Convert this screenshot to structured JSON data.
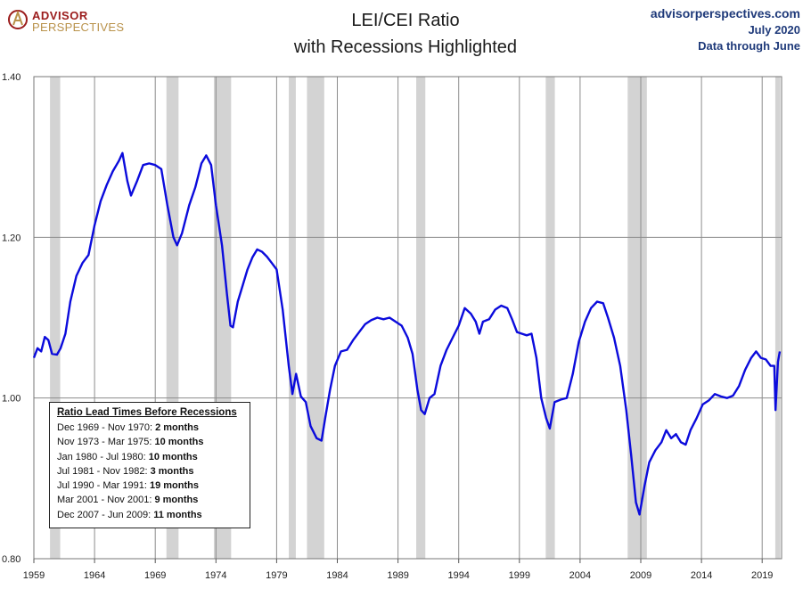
{
  "header": {
    "logo_line1": "ADVISOR",
    "logo_line2": "PERSPECTIVES",
    "title_line1": "LEI/CEI Ratio",
    "title_line2": "with Recessions Highlighted",
    "site": "advisorperspectives.com",
    "date": "July 2020",
    "data_through": "Data through June"
  },
  "note": {
    "title": "Ratio Lead Times Before Recessions",
    "rows": [
      {
        "period": "Dec 1969 - Nov 1970:",
        "lead": "2 months"
      },
      {
        "period": "Nov 1973 - Mar 1975:",
        "lead": "10 months"
      },
      {
        "period": "Jan 1980 - Jul 1980:",
        "lead": "10 months"
      },
      {
        "period": "Jul 1981 - Nov 1982:",
        "lead": "3 months"
      },
      {
        "period": "Jul 1990 - Mar 1991:",
        "lead": "19 months"
      },
      {
        "period": "Mar 2001 - Nov 2001:",
        "lead": "9 months"
      },
      {
        "period": "Dec 2007 - Jun 2009:",
        "lead": "11 months"
      }
    ]
  },
  "chart_data": {
    "type": "line",
    "title": "LEI/CEI Ratio with Recessions Highlighted",
    "xlim": [
      1959.0,
      2020.6
    ],
    "ylim": [
      0.8,
      1.4
    ],
    "y_ticks": [
      {
        "value": 0.8,
        "label": "0.80"
      },
      {
        "value": 1.0,
        "label": "1.00"
      },
      {
        "value": 1.2,
        "label": "1.20"
      },
      {
        "value": 1.4,
        "label": "1.40"
      }
    ],
    "x_ticks": [
      1959,
      1964,
      1969,
      1974,
      1979,
      1984,
      1989,
      1994,
      1999,
      2004,
      2009,
      2014,
      2019
    ],
    "grid": true,
    "colors": {
      "line": "#0b0bdc",
      "recession": "#d3d3d3",
      "grid": "#8c8c8c"
    },
    "recessions": [
      [
        1960.33,
        1961.17
      ],
      [
        1969.92,
        1970.92
      ],
      [
        1973.83,
        1975.25
      ],
      [
        1980.0,
        1980.58
      ],
      [
        1981.5,
        1982.92
      ],
      [
        1990.5,
        1991.25
      ],
      [
        2001.17,
        2001.92
      ],
      [
        2007.92,
        2009.5
      ],
      [
        2020.08,
        2020.5
      ]
    ],
    "series": [
      {
        "points": [
          [
            1959.0,
            1.05
          ],
          [
            1959.3,
            1.062
          ],
          [
            1959.6,
            1.058
          ],
          [
            1959.9,
            1.076
          ],
          [
            1960.2,
            1.072
          ],
          [
            1960.5,
            1.055
          ],
          [
            1960.9,
            1.054
          ],
          [
            1961.2,
            1.062
          ],
          [
            1961.6,
            1.08
          ],
          [
            1962.0,
            1.12
          ],
          [
            1962.5,
            1.152
          ],
          [
            1963.0,
            1.168
          ],
          [
            1963.5,
            1.178
          ],
          [
            1964.0,
            1.215
          ],
          [
            1964.5,
            1.245
          ],
          [
            1965.0,
            1.265
          ],
          [
            1965.5,
            1.282
          ],
          [
            1966.0,
            1.295
          ],
          [
            1966.3,
            1.305
          ],
          [
            1966.7,
            1.27
          ],
          [
            1967.0,
            1.252
          ],
          [
            1967.5,
            1.27
          ],
          [
            1968.0,
            1.29
          ],
          [
            1968.5,
            1.292
          ],
          [
            1969.0,
            1.29
          ],
          [
            1969.5,
            1.285
          ],
          [
            1970.0,
            1.24
          ],
          [
            1970.5,
            1.2
          ],
          [
            1970.8,
            1.19
          ],
          [
            1971.2,
            1.205
          ],
          [
            1971.8,
            1.24
          ],
          [
            1972.3,
            1.262
          ],
          [
            1972.8,
            1.292
          ],
          [
            1973.2,
            1.302
          ],
          [
            1973.6,
            1.29
          ],
          [
            1974.0,
            1.24
          ],
          [
            1974.5,
            1.19
          ],
          [
            1974.9,
            1.13
          ],
          [
            1975.2,
            1.09
          ],
          [
            1975.4,
            1.088
          ],
          [
            1975.8,
            1.12
          ],
          [
            1976.2,
            1.14
          ],
          [
            1976.6,
            1.16
          ],
          [
            1977.0,
            1.175
          ],
          [
            1977.4,
            1.185
          ],
          [
            1977.8,
            1.182
          ],
          [
            1978.2,
            1.176
          ],
          [
            1978.6,
            1.168
          ],
          [
            1979.0,
            1.16
          ],
          [
            1979.5,
            1.11
          ],
          [
            1980.0,
            1.04
          ],
          [
            1980.3,
            1.005
          ],
          [
            1980.6,
            1.03
          ],
          [
            1981.0,
            1.002
          ],
          [
            1981.4,
            0.995
          ],
          [
            1981.8,
            0.965
          ],
          [
            1982.3,
            0.95
          ],
          [
            1982.7,
            0.947
          ],
          [
            1983.0,
            0.975
          ],
          [
            1983.4,
            1.01
          ],
          [
            1983.8,
            1.04
          ],
          [
            1984.3,
            1.058
          ],
          [
            1984.8,
            1.06
          ],
          [
            1985.3,
            1.072
          ],
          [
            1985.8,
            1.082
          ],
          [
            1986.3,
            1.092
          ],
          [
            1986.8,
            1.097
          ],
          [
            1987.3,
            1.1
          ],
          [
            1987.8,
            1.098
          ],
          [
            1988.3,
            1.1
          ],
          [
            1988.8,
            1.095
          ],
          [
            1989.3,
            1.09
          ],
          [
            1989.8,
            1.075
          ],
          [
            1990.2,
            1.055
          ],
          [
            1990.6,
            1.01
          ],
          [
            1990.9,
            0.985
          ],
          [
            1991.2,
            0.98
          ],
          [
            1991.6,
            1.0
          ],
          [
            1992.0,
            1.005
          ],
          [
            1992.5,
            1.04
          ],
          [
            1993.0,
            1.06
          ],
          [
            1993.5,
            1.075
          ],
          [
            1994.0,
            1.09
          ],
          [
            1994.5,
            1.112
          ],
          [
            1995.0,
            1.105
          ],
          [
            1995.4,
            1.095
          ],
          [
            1995.7,
            1.08
          ],
          [
            1996.0,
            1.095
          ],
          [
            1996.5,
            1.098
          ],
          [
            1997.0,
            1.11
          ],
          [
            1997.5,
            1.115
          ],
          [
            1998.0,
            1.112
          ],
          [
            1998.4,
            1.098
          ],
          [
            1998.8,
            1.082
          ],
          [
            1999.2,
            1.08
          ],
          [
            1999.6,
            1.078
          ],
          [
            2000.0,
            1.08
          ],
          [
            2000.4,
            1.05
          ],
          [
            2000.8,
            1.0
          ],
          [
            2001.2,
            0.975
          ],
          [
            2001.5,
            0.962
          ],
          [
            2001.9,
            0.995
          ],
          [
            2002.4,
            0.998
          ],
          [
            2002.9,
            1.0
          ],
          [
            2003.4,
            1.03
          ],
          [
            2003.9,
            1.07
          ],
          [
            2004.4,
            1.095
          ],
          [
            2004.9,
            1.112
          ],
          [
            2005.4,
            1.12
          ],
          [
            2005.9,
            1.118
          ],
          [
            2006.3,
            1.1
          ],
          [
            2006.8,
            1.075
          ],
          [
            2007.3,
            1.04
          ],
          [
            2007.8,
            0.985
          ],
          [
            2008.2,
            0.93
          ],
          [
            2008.6,
            0.87
          ],
          [
            2008.9,
            0.855
          ],
          [
            2009.3,
            0.89
          ],
          [
            2009.7,
            0.92
          ],
          [
            2010.2,
            0.935
          ],
          [
            2010.7,
            0.945
          ],
          [
            2011.1,
            0.96
          ],
          [
            2011.5,
            0.95
          ],
          [
            2011.9,
            0.955
          ],
          [
            2012.3,
            0.945
          ],
          [
            2012.7,
            0.942
          ],
          [
            2013.1,
            0.96
          ],
          [
            2013.6,
            0.975
          ],
          [
            2014.1,
            0.992
          ],
          [
            2014.6,
            0.997
          ],
          [
            2015.1,
            1.005
          ],
          [
            2015.6,
            1.002
          ],
          [
            2016.1,
            1.0
          ],
          [
            2016.6,
            1.003
          ],
          [
            2017.1,
            1.015
          ],
          [
            2017.6,
            1.035
          ],
          [
            2018.1,
            1.05
          ],
          [
            2018.5,
            1.058
          ],
          [
            2018.9,
            1.05
          ],
          [
            2019.3,
            1.048
          ],
          [
            2019.7,
            1.04
          ],
          [
            2020.0,
            1.04
          ],
          [
            2020.1,
            0.985
          ],
          [
            2020.3,
            1.045
          ],
          [
            2020.45,
            1.058
          ]
        ]
      }
    ]
  }
}
